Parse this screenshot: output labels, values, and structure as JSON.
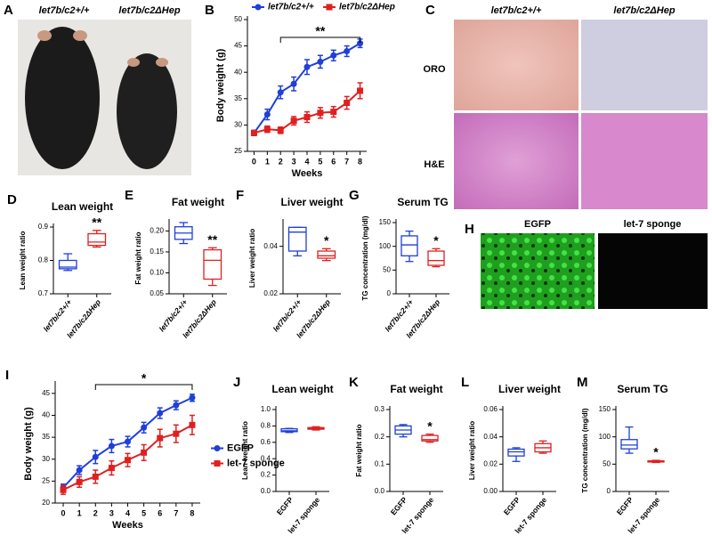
{
  "chart_data": [
    {
      "type": "line",
      "panel": "B",
      "ylabel": "Body weight (g)",
      "xlabel": "Weeks",
      "x": [
        0,
        1,
        2,
        3,
        4,
        5,
        6,
        7,
        8
      ],
      "xlim": [
        -0.5,
        8.5
      ],
      "xticks": [
        0,
        1,
        2,
        3,
        4,
        5,
        6,
        7,
        8
      ],
      "ylim": [
        25,
        50
      ],
      "yticks": [
        25,
        30,
        35,
        40,
        45,
        50
      ],
      "series": [
        {
          "name": "let7b/c2+/+",
          "color": "#1f3fd8",
          "marker": "circle",
          "values": [
            28.5,
            32,
            36.2,
            37.8,
            41,
            42,
            43.2,
            44,
            45.5
          ],
          "errors": [
            0.5,
            1,
            1.2,
            1.3,
            1.4,
            1.2,
            1,
            1,
            0.8
          ]
        },
        {
          "name": "let7b/c2ΔHep",
          "color": "#e02020",
          "marker": "square",
          "values": [
            28.5,
            29.2,
            29,
            30.8,
            31.5,
            32.3,
            32.5,
            34.2,
            36.5
          ],
          "errors": [
            0.4,
            0.6,
            0.6,
            0.8,
            1,
            1,
            1,
            1.2,
            1.5
          ]
        }
      ],
      "bracket": {
        "from": 2,
        "to": 8,
        "label": "**"
      },
      "legend": "top"
    },
    {
      "type": "box",
      "panel": "D",
      "title": "Lean weight",
      "ylabel": "Lean weight ratio",
      "categories": [
        "let7b/c2+/+",
        "let7b/c2ΔHep"
      ],
      "colors": [
        "#1f3fd8",
        "#e02020"
      ],
      "ylim": [
        0.7,
        0.9
      ],
      "yticks": [
        0.7,
        0.8,
        0.9
      ],
      "boxes": [
        {
          "min": 0.77,
          "q1": 0.775,
          "median": 0.78,
          "q3": 0.8,
          "max": 0.82
        },
        {
          "min": 0.84,
          "q1": 0.845,
          "median": 0.855,
          "q3": 0.88,
          "max": 0.89
        }
      ],
      "annotation": "**"
    },
    {
      "type": "box",
      "panel": "E",
      "title": "Fat weight",
      "ylabel": "Fat weight ratio",
      "categories": [
        "let7b/c2+/+",
        "let7b/c2ΔHep"
      ],
      "colors": [
        "#1f3fd8",
        "#e02020"
      ],
      "ylim": [
        0.05,
        0.22
      ],
      "yticks": [
        0.05,
        {
          "value": 0.1,
          "label": "0.10"
        },
        0.15,
        {
          "value": 0.2,
          "label": "0.20"
        }
      ],
      "boxes": [
        {
          "min": 0.17,
          "q1": 0.18,
          "median": 0.195,
          "q3": 0.21,
          "max": 0.22
        },
        {
          "min": 0.07,
          "q1": 0.085,
          "median": 0.13,
          "q3": 0.155,
          "max": 0.16
        }
      ],
      "annotation": "**"
    },
    {
      "type": "box",
      "panel": "F",
      "title": "Liver weight",
      "ylabel": "Liver weight ratio",
      "categories": [
        "let7b/c2+/+",
        "let7b/c2ΔHep"
      ],
      "colors": [
        "#1f3fd8",
        "#e02020"
      ],
      "ylim": [
        0.02,
        0.05
      ],
      "yticks": [
        0.02,
        0.04
      ],
      "boxes": [
        {
          "min": 0.036,
          "q1": 0.038,
          "median": 0.046,
          "q3": 0.048,
          "max": 0.048
        },
        {
          "min": 0.034,
          "q1": 0.035,
          "median": 0.036,
          "q3": 0.038,
          "max": 0.039
        }
      ],
      "annotation": "*"
    },
    {
      "type": "box",
      "panel": "G",
      "title": "Serum TG",
      "ylabel": "TG concentration (mg/dl)",
      "categories": [
        "let7b/c2+/+",
        "let7b/c2ΔHep"
      ],
      "colors": [
        "#1f3fd8",
        "#e02020"
      ],
      "ylim": [
        0,
        150
      ],
      "yticks": [
        0,
        50,
        100,
        150
      ],
      "boxes": [
        {
          "min": 68,
          "q1": 80,
          "median": 103,
          "q3": 122,
          "max": 132
        },
        {
          "min": 57,
          "q1": 60,
          "median": 70,
          "q3": 90,
          "max": 95
        }
      ],
      "annotation": "*"
    },
    {
      "type": "line",
      "panel": "I",
      "ylabel": "Body weight (g)",
      "xlabel": "Weeks",
      "x": [
        0,
        1,
        2,
        3,
        4,
        5,
        6,
        7,
        8
      ],
      "xlim": [
        -0.5,
        8.5
      ],
      "xticks": [
        0,
        1,
        2,
        3,
        4,
        5,
        6,
        7,
        8
      ],
      "ylim": [
        20,
        47
      ],
      "yticks": [
        20,
        25,
        30,
        35,
        40,
        45
      ],
      "series": [
        {
          "name": "EGFP",
          "color": "#1f3fd8",
          "marker": "circle",
          "values": [
            23.5,
            27.5,
            30.5,
            33,
            34,
            37.2,
            40.5,
            42.3,
            44
          ],
          "errors": [
            0.8,
            1,
            1.5,
            1.5,
            1.2,
            1.2,
            1.2,
            1,
            0.8
          ]
        },
        {
          "name": "let-7 sponge",
          "color": "#e02020",
          "marker": "square",
          "values": [
            23,
            24.8,
            26,
            28,
            29.8,
            31.5,
            34.8,
            35.8,
            37.8
          ],
          "errors": [
            1,
            1.2,
            1.5,
            1.6,
            1.5,
            1.8,
            2,
            2,
            2.2
          ]
        }
      ],
      "bracket": {
        "from": 2,
        "to": 8,
        "label": "*"
      },
      "legend": "right"
    },
    {
      "type": "box",
      "panel": "J",
      "title": "Lean weight",
      "ylabel": "Lean weight ratio",
      "categories": [
        "EGFP",
        "let-7 sponge"
      ],
      "colors": [
        "#1f3fd8",
        "#e02020"
      ],
      "ylim": [
        0,
        1
      ],
      "yticks": [
        {
          "value": 0,
          "label": "0.0"
        },
        0.2,
        0.4,
        0.6,
        0.8,
        {
          "value": 1,
          "label": "1.0"
        }
      ],
      "boxes": [
        {
          "min": 0.72,
          "q1": 0.73,
          "median": 0.74,
          "q3": 0.765,
          "max": 0.77
        },
        {
          "min": 0.75,
          "q1": 0.76,
          "median": 0.77,
          "q3": 0.78,
          "max": 0.79
        }
      ]
    },
    {
      "type": "box",
      "panel": "K",
      "title": "Fat weight",
      "ylabel": "Fat weight ratio",
      "categories": [
        "EGFP",
        "let-7 sponge"
      ],
      "colors": [
        "#1f3fd8",
        "#e02020"
      ],
      "ylim": [
        0,
        0.3
      ],
      "yticks": [
        {
          "value": 0,
          "label": "0.0"
        },
        0.1,
        0.2,
        0.3
      ],
      "boxes": [
        {
          "min": 0.2,
          "q1": 0.21,
          "median": 0.225,
          "q3": 0.24,
          "max": 0.245
        },
        {
          "min": 0.18,
          "q1": 0.185,
          "median": 0.19,
          "q3": 0.205,
          "max": 0.21
        }
      ],
      "annotation": "*"
    },
    {
      "type": "box",
      "panel": "L",
      "title": "Liver weight",
      "ylabel": "Liver weight ratio",
      "categories": [
        "EGFP",
        "let-7 sponge"
      ],
      "colors": [
        "#1f3fd8",
        "#e02020"
      ],
      "ylim": [
        0,
        0.06
      ],
      "yticks": [
        {
          "value": 0,
          "label": "0.00"
        },
        0.02,
        0.04,
        0.06
      ],
      "boxes": [
        {
          "min": 0.022,
          "q1": 0.026,
          "median": 0.029,
          "q3": 0.031,
          "max": 0.032
        },
        {
          "min": 0.028,
          "q1": 0.029,
          "median": 0.032,
          "q3": 0.035,
          "max": 0.037
        }
      ]
    },
    {
      "type": "box",
      "panel": "M",
      "title": "Serum TG",
      "ylabel": "TG concentration (mg/dl)",
      "categories": [
        "EGFP",
        "let-7 sponge"
      ],
      "colors": [
        "#1f3fd8",
        "#e02020"
      ],
      "ylim": [
        0,
        150
      ],
      "yticks": [
        0,
        50,
        100,
        150
      ],
      "boxes": [
        {
          "min": 70,
          "q1": 78,
          "median": 85,
          "q3": 95,
          "max": 118
        },
        {
          "min": 53,
          "q1": 54,
          "median": 55,
          "q3": 56,
          "max": 57
        }
      ],
      "annotation": "*"
    }
  ],
  "figure_panels": [
    {
      "panel": "A",
      "labels": [
        "let7b/c2+/+",
        "let7b/c2ΔHep"
      ]
    },
    {
      "panel": "C",
      "labels": [
        "let7b/c2+/+",
        "let7b/c2ΔHep"
      ],
      "rows": [
        "ORO",
        "H&E"
      ]
    },
    {
      "panel": "H",
      "labels": [
        "EGFP",
        "let-7 sponge"
      ]
    }
  ]
}
